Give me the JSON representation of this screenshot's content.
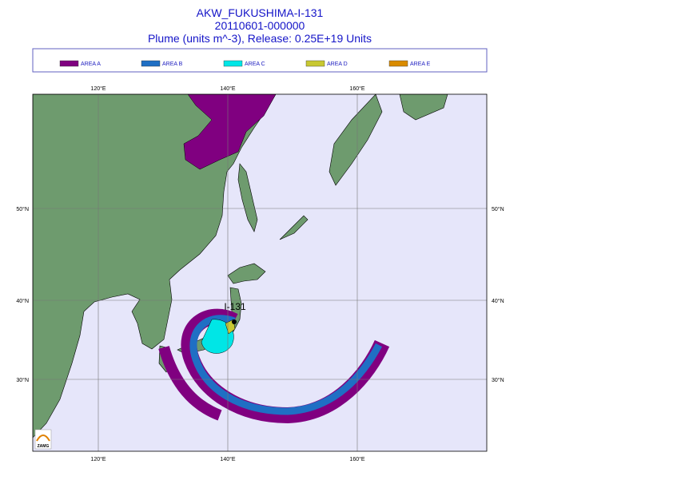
{
  "header": {
    "title": [
      "AKW_FUKUSHIMA-I-131",
      "20110601-000000",
      "Plume (units m^-3), Release:  0.25E+19 Units"
    ]
  },
  "legend": [
    {
      "name": "AREA A",
      "color": "#800080"
    },
    {
      "name": "AREA B",
      "color": "#1f6fc4"
    },
    {
      "name": "AREA C",
      "color": "#00e6e6"
    },
    {
      "name": "AREA D",
      "color": "#c8c832"
    },
    {
      "name": "AREA E",
      "color": "#d98c00"
    }
  ],
  "map": {
    "lon_labels": [
      "120°E",
      "140°E",
      "160°E"
    ],
    "lat_labels": [
      "50°N",
      "40°N",
      "30°N"
    ],
    "source": "I-131",
    "logo": "ZAMG"
  }
}
